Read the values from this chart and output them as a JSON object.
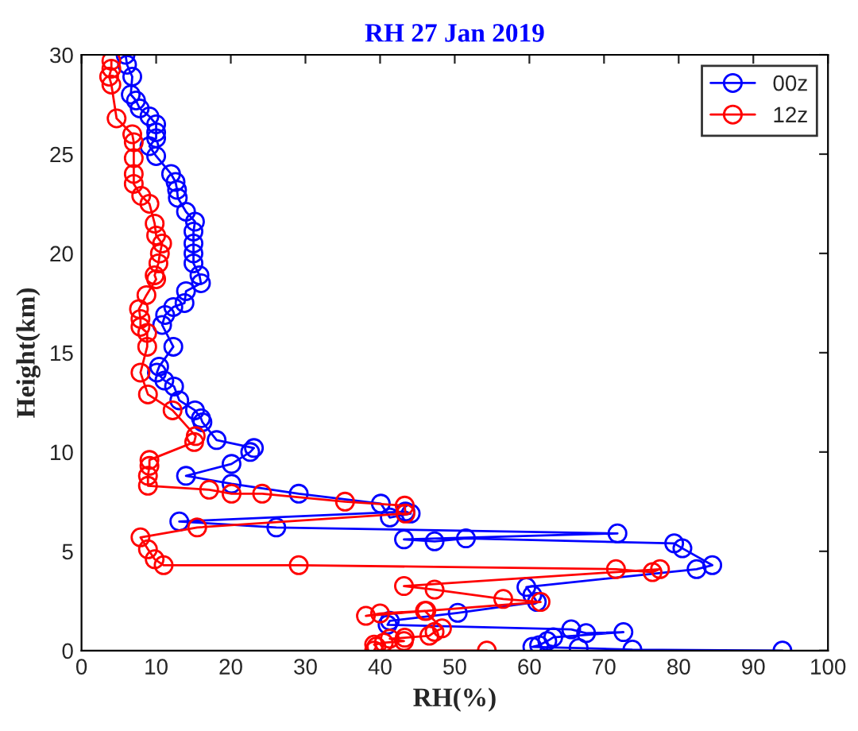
{
  "chart_data": {
    "type": "line",
    "title": "RH 27 Jan 2019",
    "xlabel": "RH(%)",
    "ylabel": "Height(km)",
    "xlim": [
      0,
      100
    ],
    "xticks": [
      0,
      10,
      20,
      30,
      40,
      50,
      60,
      70,
      80,
      90,
      100
    ],
    "ylim": [
      0,
      30
    ],
    "yticks": [
      0,
      5,
      10,
      15,
      20,
      25,
      30
    ],
    "grid": false,
    "legend": "top right",
    "marker": "circle",
    "line_style": "solid",
    "series": [
      {
        "name": "00z",
        "color": "#0000ff",
        "x": [
          5.9,
          6.1,
          6.8,
          6.6,
          7.3,
          7.8,
          9.1,
          10.0,
          10.0,
          10.0,
          9.1,
          10.0,
          12.0,
          12.6,
          12.8,
          12.9,
          14.0,
          15.2,
          15.0,
          15.0,
          15.0,
          15.0,
          15.8,
          16.0,
          14.0,
          13.8,
          12.3,
          11.2,
          10.8,
          12.3,
          10.4,
          10.1,
          11.1,
          12.4,
          13.1,
          15.2,
          16.0,
          16.2,
          18.1,
          23.1,
          22.6,
          20.1,
          14.0,
          20.1,
          29.1,
          40.1,
          41.3,
          44.1,
          43.4,
          13.1,
          26.1,
          71.8,
          43.2,
          47.3,
          51.5,
          79.4,
          80.5,
          84.5,
          82.4,
          59.6,
          60.4,
          61.0,
          50.4,
          41.3,
          41.0,
          65.6,
          67.6,
          72.6,
          63.2,
          62.4,
          61.3,
          60.4,
          66.6,
          73.8,
          93.9
        ],
        "values": [
          30.0,
          29.5,
          28.9,
          28.0,
          27.7,
          27.3,
          26.9,
          26.5,
          26.1,
          25.8,
          25.4,
          24.9,
          24.0,
          23.6,
          23.2,
          22.8,
          22.1,
          21.6,
          21.1,
          20.5,
          20.0,
          19.5,
          18.9,
          18.5,
          18.1,
          17.5,
          17.3,
          16.9,
          16.4,
          15.3,
          14.3,
          14.0,
          13.6,
          13.3,
          12.6,
          12.1,
          11.7,
          11.5,
          10.6,
          10.2,
          10.0,
          9.4,
          8.8,
          8.4,
          7.9,
          7.4,
          6.7,
          6.9,
          7.0,
          6.5,
          6.2,
          5.9,
          5.6,
          5.5,
          5.65,
          5.4,
          5.15,
          4.3,
          4.1,
          3.2,
          2.8,
          2.45,
          1.9,
          1.5,
          1.3,
          1.07,
          0.88,
          0.93,
          0.67,
          0.48,
          0.27,
          0.19,
          0.13,
          0.05,
          0.0
        ]
      },
      {
        "name": "12z",
        "color": "#ff0000",
        "x": [
          4.0,
          4.0,
          3.7,
          4.0,
          4.7,
          6.8,
          7.0,
          7.0,
          7.0,
          7.0,
          8.0,
          9.1,
          9.8,
          10.0,
          10.8,
          10.5,
          10.3,
          9.8,
          10.0,
          8.7,
          7.7,
          7.9,
          7.9,
          8.8,
          8.8,
          7.9,
          8.9,
          12.2,
          15.3,
          15.1,
          9.1,
          9.1,
          8.9,
          8.9,
          17.1,
          20.1,
          24.2,
          35.3,
          43.3,
          43.4,
          15.5,
          7.9,
          8.9,
          9.8,
          11.0,
          29.1,
          71.6,
          76.5,
          77.5,
          43.2,
          47.3,
          56.5,
          61.5,
          46.2,
          38.1,
          40.0,
          46.0,
          48.3,
          47.3,
          46.6,
          43.3,
          41.3,
          43.2,
          40.5,
          39.2,
          39.5,
          39.2,
          54.3
        ],
        "values": [
          29.7,
          29.3,
          28.9,
          28.5,
          26.8,
          26.0,
          25.6,
          24.8,
          24.0,
          23.5,
          22.9,
          22.5,
          21.5,
          20.9,
          20.5,
          20.0,
          19.5,
          18.9,
          18.7,
          17.9,
          17.2,
          16.7,
          16.3,
          16.0,
          15.3,
          14.0,
          12.9,
          12.1,
          10.8,
          10.5,
          9.6,
          9.3,
          8.8,
          8.3,
          8.1,
          7.9,
          7.9,
          7.5,
          7.3,
          6.9,
          6.2,
          5.7,
          5.1,
          4.6,
          4.3,
          4.3,
          4.1,
          3.95,
          4.1,
          3.25,
          3.07,
          2.6,
          2.45,
          2.0,
          1.75,
          1.87,
          2.0,
          1.12,
          0.94,
          0.75,
          0.65,
          0.6,
          0.48,
          0.4,
          0.3,
          0.2,
          0.0,
          0.0
        ]
      }
    ]
  }
}
